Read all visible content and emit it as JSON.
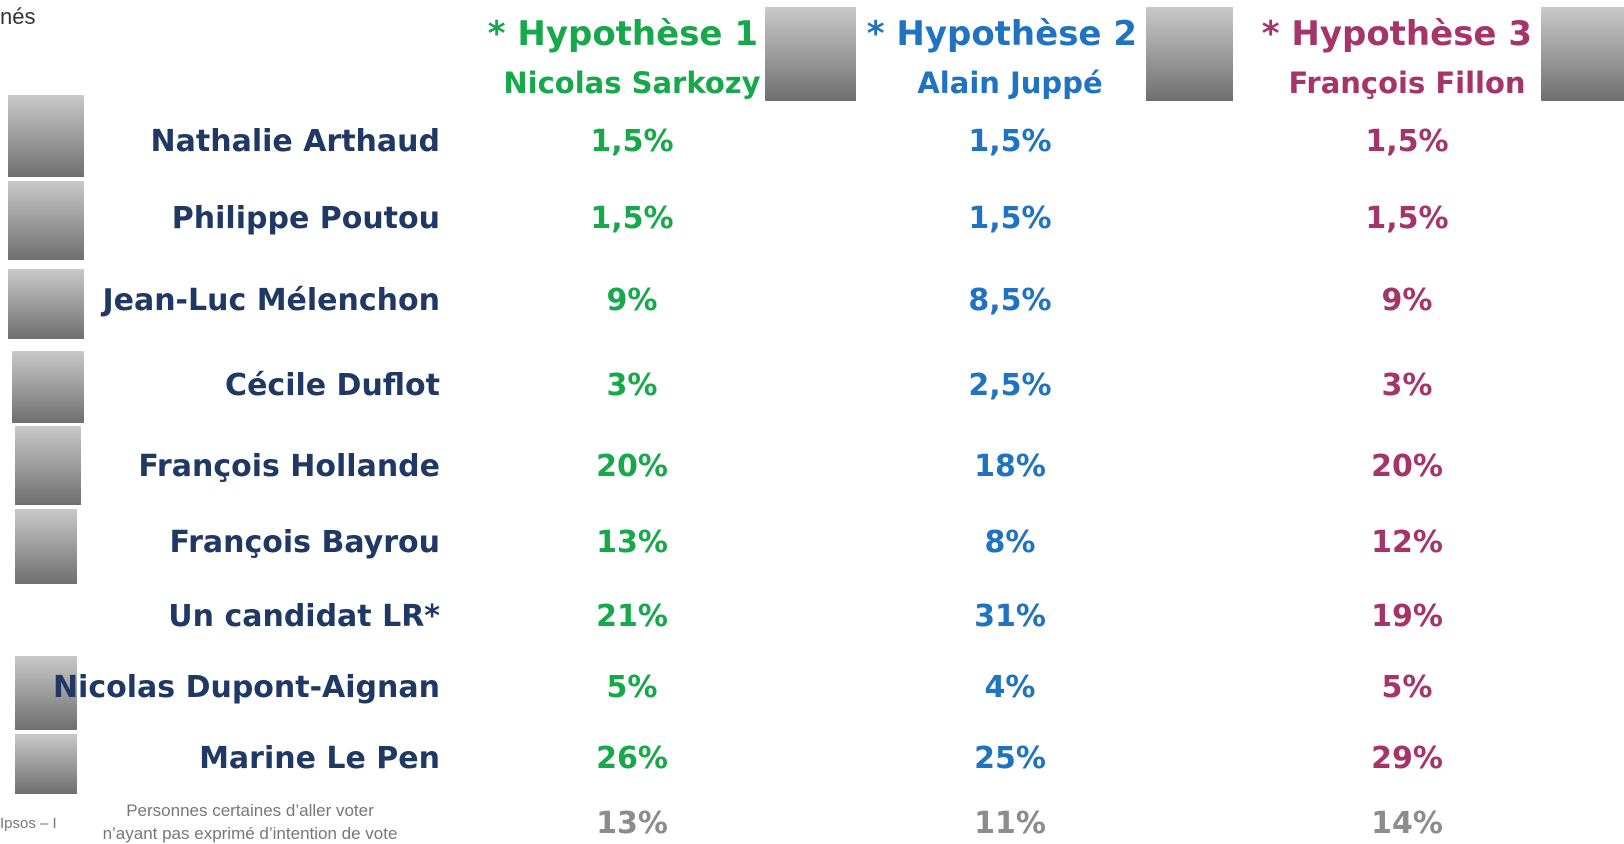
{
  "header_fragment": "nés",
  "name_color": "#1f3864",
  "columns": [
    {
      "title": "* Hypothèse 1",
      "subtitle": "Nicolas Sarkozy",
      "color": "#17a84b"
    },
    {
      "title": "* Hypothèse 2",
      "subtitle": "Alain Juppé",
      "color": "#1f73c0"
    },
    {
      "title": "* Hypothèse 3",
      "subtitle": "François Fillon",
      "color": "#a5346b"
    }
  ],
  "rows": [
    {
      "name": "Nathalie Arthaud",
      "values": [
        "1,5%",
        "1,5%",
        "1,5%"
      ]
    },
    {
      "name": "Philippe Poutou",
      "values": [
        "1,5%",
        "1,5%",
        "1,5%"
      ]
    },
    {
      "name": "Jean-Luc Mélenchon",
      "values": [
        "9%",
        "8,5%",
        "9%"
      ]
    },
    {
      "name": "Cécile Duflot",
      "values": [
        "3%",
        "2,5%",
        "3%"
      ]
    },
    {
      "name": "François Hollande",
      "values": [
        "20%",
        "18%",
        "20%"
      ]
    },
    {
      "name": "François Bayrou",
      "values": [
        "13%",
        "8%",
        "12%"
      ]
    },
    {
      "name": "Un candidat LR*",
      "values": [
        "21%",
        "31%",
        "19%"
      ]
    },
    {
      "name": "Nicolas Dupont-Aignan",
      "values": [
        "5%",
        "4%",
        "5%"
      ]
    },
    {
      "name": "Marine Le Pen",
      "values": [
        "26%",
        "25%",
        "29%"
      ]
    }
  ],
  "no_intention": {
    "label_line1": "Personnes certaines d’aller voter",
    "label_line2": "n’ayant pas exprimé d’intention de vote",
    "values": [
      "13%",
      "11%",
      "14%"
    ],
    "color": "#8c8c8c"
  },
  "source_fragment": "Ipsos – I"
}
